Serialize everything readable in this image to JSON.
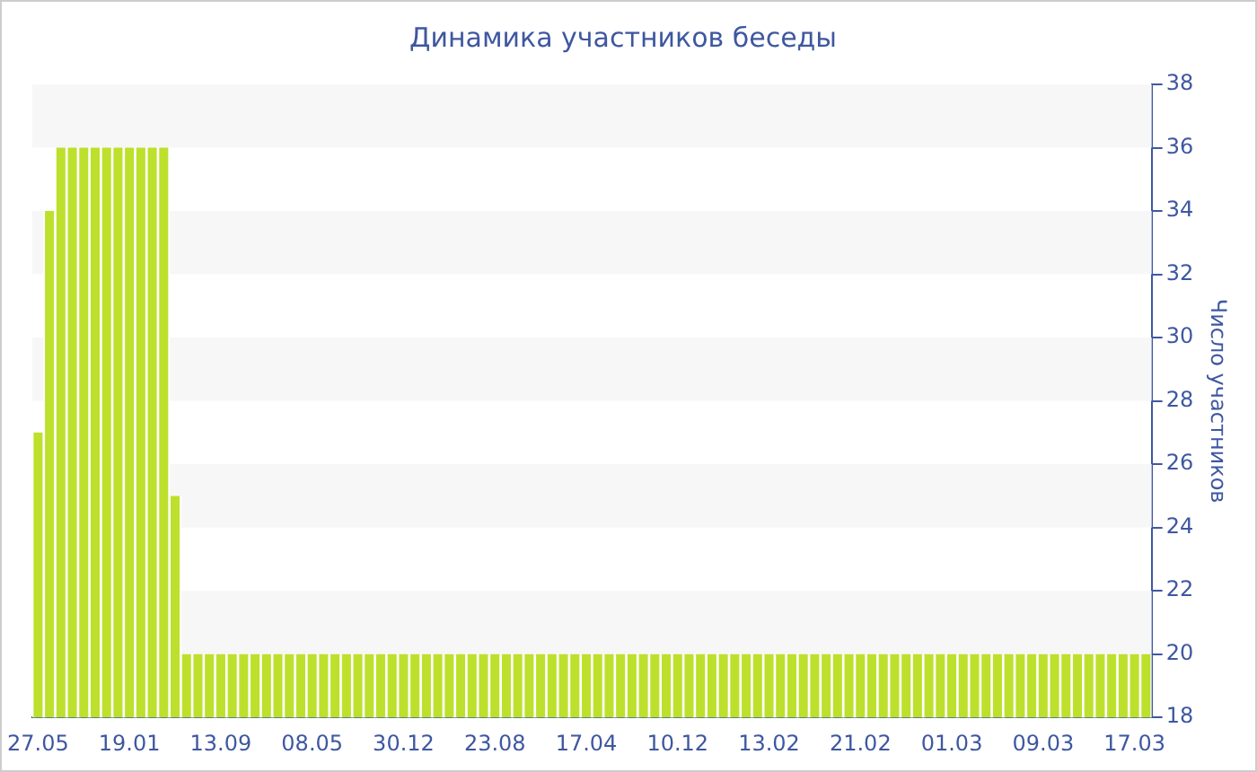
{
  "chart_data": {
    "type": "bar",
    "title": "Динамика участников беседы",
    "ylabel": "Число участников",
    "categories": [
      "27.05",
      null,
      null,
      null,
      null,
      null,
      null,
      null,
      "19.01",
      null,
      null,
      null,
      null,
      null,
      null,
      null,
      "13.09",
      null,
      null,
      null,
      null,
      null,
      null,
      null,
      "08.05",
      null,
      null,
      null,
      null,
      null,
      null,
      null,
      "30.12",
      null,
      null,
      null,
      null,
      null,
      null,
      null,
      "23.08",
      null,
      null,
      null,
      null,
      null,
      null,
      null,
      "17.04",
      null,
      null,
      null,
      null,
      null,
      null,
      null,
      "10.12",
      null,
      null,
      null,
      null,
      null,
      null,
      null,
      "13.02",
      null,
      null,
      null,
      null,
      null,
      null,
      null,
      "21.02",
      null,
      null,
      null,
      null,
      null,
      null,
      null,
      "01.03",
      null,
      null,
      null,
      null,
      null,
      null,
      null,
      "09.03",
      null,
      null,
      null,
      null,
      null,
      null,
      null,
      "17.03",
      null
    ],
    "values": [
      27,
      34,
      36,
      36,
      36,
      36,
      36,
      36,
      36,
      36,
      36,
      36,
      25,
      20,
      20,
      20,
      20,
      20,
      20,
      20,
      20,
      20,
      20,
      20,
      20,
      20,
      20,
      20,
      20,
      20,
      20,
      20,
      20,
      20,
      20,
      20,
      20,
      20,
      20,
      20,
      20,
      20,
      20,
      20,
      20,
      20,
      20,
      20,
      20,
      20,
      20,
      20,
      20,
      20,
      20,
      20,
      20,
      20,
      20,
      20,
      20,
      20,
      20,
      20,
      20,
      20,
      20,
      20,
      20,
      20,
      20,
      20,
      20,
      20,
      20,
      20,
      20,
      20,
      20,
      20,
      20,
      20,
      20,
      20,
      20,
      20,
      20,
      20,
      20,
      20,
      20,
      20,
      20,
      20,
      20,
      20,
      20,
      20
    ],
    "color": "#bde02c",
    "ylim": [
      18,
      38
    ],
    "yticks": [
      18,
      20,
      22,
      24,
      26,
      28,
      30,
      32,
      34,
      36,
      38
    ],
    "bands": [
      {
        "axis": "y",
        "from": 20,
        "to": 22,
        "color": "#f7f7f7"
      },
      {
        "axis": "y",
        "from": 24,
        "to": 26,
        "color": "#f7f7f7"
      },
      {
        "axis": "y",
        "from": 28,
        "to": 30,
        "color": "#f7f7f7"
      },
      {
        "axis": "y",
        "from": 32,
        "to": 34,
        "color": "#f7f7f7"
      },
      {
        "axis": "y",
        "from": 36,
        "to": 38,
        "color": "#f7f7f7"
      }
    ],
    "grid": false,
    "legend": false
  }
}
